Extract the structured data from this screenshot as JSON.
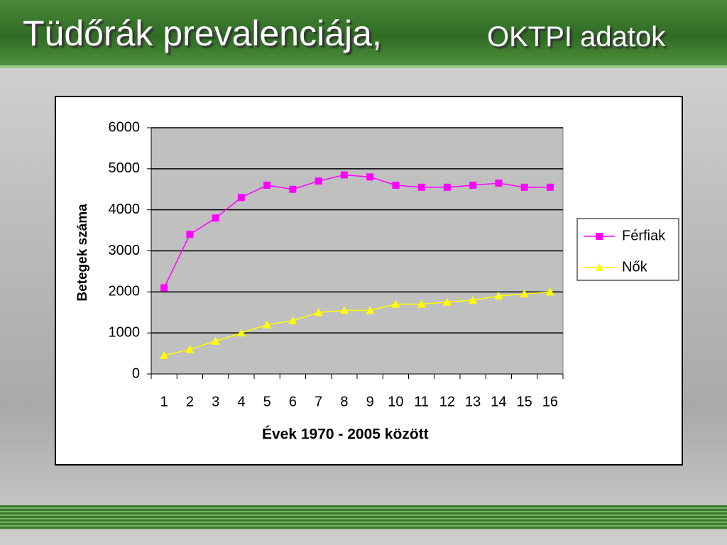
{
  "chart_data": {
    "type": "line",
    "title": "Tüdőrák prevalenciája,",
    "subtitle": "OKTPI adatok",
    "xlabel": "Évek 1970 - 2005 között",
    "ylabel": "Betegek száma",
    "categories": [
      "1",
      "2",
      "3",
      "4",
      "5",
      "6",
      "7",
      "8",
      "9",
      "10",
      "11",
      "12",
      "13",
      "14",
      "15",
      "16"
    ],
    "series": [
      {
        "name": "Férfiak",
        "color": "#ff00ff",
        "marker": "square",
        "values": [
          2100,
          3400,
          3800,
          4300,
          4600,
          4500,
          4700,
          4850,
          4800,
          4600,
          4550,
          4550,
          4600,
          4650,
          4550,
          4550
        ]
      },
      {
        "name": "Nők",
        "color": "#ffff00",
        "marker": "triangle",
        "values": [
          450,
          600,
          800,
          1000,
          1200,
          1300,
          1500,
          1550,
          1550,
          1700,
          1700,
          1750,
          1800,
          1900,
          1950,
          2000
        ]
      }
    ],
    "ylim": [
      0,
      6000
    ],
    "yticks": [
      0,
      1000,
      2000,
      3000,
      4000,
      5000,
      6000
    ],
    "grid": true,
    "legend": "right"
  }
}
